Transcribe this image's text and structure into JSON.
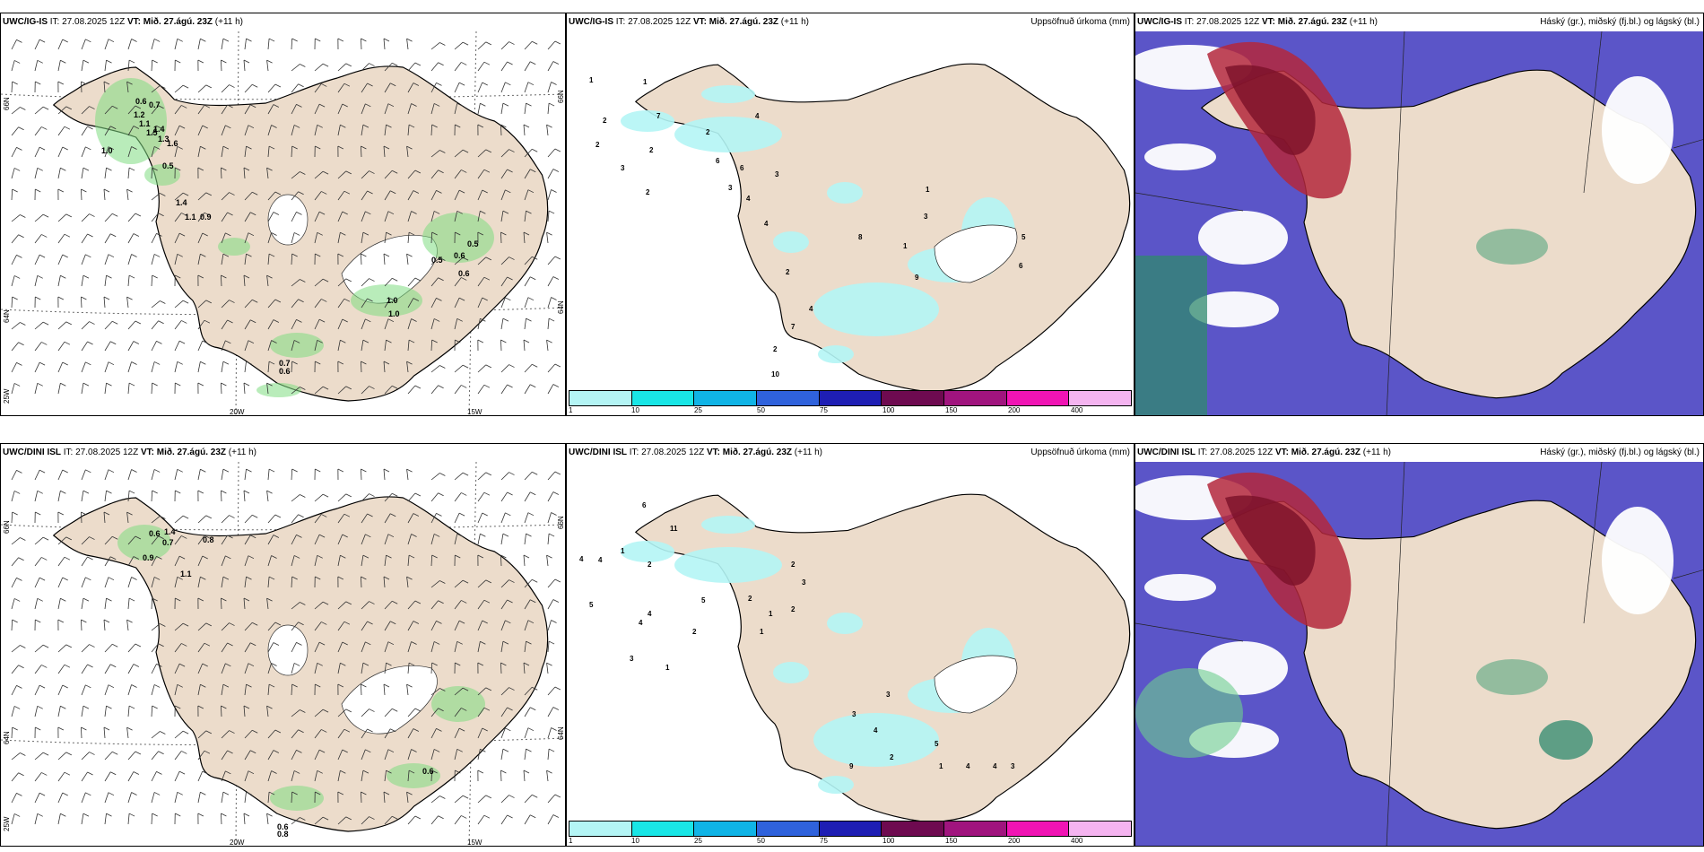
{
  "rows": [
    {
      "left_header": {
        "model": "UWC/IG-IS",
        "it_label": "IT:",
        "it_value": "27.08.2025 12Z",
        "vt_label": "VT:",
        "vt_value": "Mið. 27.ágú. 23Z",
        "lead": "(+11 h)"
      },
      "middle_header": {
        "model": "UWC/IG-IS",
        "it_label": "IT:",
        "it_value": "27.08.2025 12Z",
        "vt_label": "VT:",
        "vt_value": "Mið. 27.ágú. 23Z",
        "lead": "(+11 h)"
      },
      "right_header": {
        "model": "UWC/IG-IS",
        "it_label": "IT:",
        "it_value": "27.08.2025 12Z",
        "vt_label": "VT:",
        "vt_value": "Mið. 27.ágú. 23Z",
        "lead": "(+11 h)"
      },
      "wind_values": [
        "0.6",
        "0.7",
        "1.2",
        "1.1",
        "1.5",
        "1.4",
        "1.3",
        "1.6",
        "1.0",
        "0.9",
        "0.5",
        "0.5",
        "0.6",
        "0.5",
        "0.6",
        "1.0",
        "1.0",
        "0.7",
        "0.6",
        "1.4",
        "1.1"
      ],
      "precip_values": [
        "1",
        "1",
        "2",
        "2",
        "7",
        "4",
        "2",
        "3",
        "2",
        "2",
        "6",
        "6",
        "3",
        "4",
        "3",
        "4",
        "1",
        "1",
        "3",
        "2",
        "8",
        "4",
        "7",
        "2",
        "9",
        "6",
        "5",
        "10"
      ]
    },
    {
      "left_header": {
        "model": "UWC/DINI ISL",
        "it_label": "IT:",
        "it_value": "27.08.2025 12Z",
        "vt_label": "VT:",
        "vt_value": "Mið. 27.ágú. 23Z",
        "lead": "(+11 h)"
      },
      "middle_header": {
        "model": "UWC/DINI ISL",
        "it_label": "IT:",
        "it_value": "27.08.2025 12Z",
        "vt_label": "VT:",
        "vt_value": "Mið. 27.ágú. 23Z",
        "lead": "(+11 h)"
      },
      "right_header": {
        "model": "UWC/DINI ISL",
        "it_label": "IT:",
        "it_value": "27.08.2025 12Z",
        "vt_label": "VT:",
        "vt_value": "Mið. 27.ágú. 23Z",
        "lead": "(+11 h)"
      },
      "wind_values": [
        "0.6",
        "1.4",
        "0.7",
        "0.8",
        "0.9",
        "1.1",
        "0.6",
        "0.6",
        "0.8"
      ],
      "precip_values": [
        "6",
        "4",
        "4",
        "1",
        "11",
        "5",
        "4",
        "2",
        "5",
        "4",
        "3",
        "1",
        "2",
        "2",
        "1",
        "2",
        "3",
        "2",
        "1",
        "3",
        "3",
        "4",
        "5",
        "2",
        "3",
        "1",
        "9",
        "4",
        "4"
      ]
    }
  ],
  "precip_title": "Uppsöfnuð úrkoma (mm)",
  "cloud_title": "Háský (gr.), miðský (fj.bl.) og lágský (bl.)",
  "coords": {
    "lon_20": "20W",
    "lon_15": "15W",
    "lon_25": "25W",
    "lat_66": "66N",
    "lat_64": "64N"
  },
  "legend": {
    "ticks": [
      "1",
      "10",
      "25",
      "50",
      "75",
      "100",
      "150",
      "200",
      "400"
    ],
    "colors": [
      "#b4f5f5",
      "#19e6e6",
      "#10b4e6",
      "#2f62dc",
      "#1e1eb4",
      "#6e0a50",
      "#a0147e",
      "#f014b4",
      "#f5b4f0"
    ]
  },
  "colors": {
    "land": "#ecdccb",
    "green": "#7fdc82",
    "cloud_blue": "#5b55c8",
    "high_red": "#b4283c",
    "precip_cyan": "#b4f5f5"
  }
}
